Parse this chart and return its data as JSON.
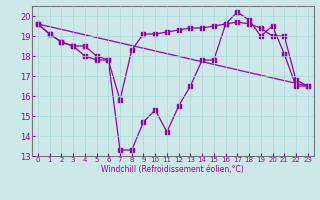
{
  "line1_x": [
    0,
    1,
    2,
    3,
    4,
    5,
    6,
    7,
    8,
    9,
    10,
    11,
    12,
    13,
    14,
    15,
    16,
    17,
    18,
    19,
    20,
    21,
    22,
    23
  ],
  "line1_y": [
    19.6,
    19.1,
    18.7,
    18.5,
    18.0,
    17.8,
    17.8,
    13.3,
    13.3,
    14.7,
    15.3,
    14.2,
    15.5,
    16.5,
    17.8,
    17.8,
    19.6,
    20.2,
    19.8,
    19.0,
    19.5,
    18.1,
    16.5,
    16.5
  ],
  "line2_x": [
    0,
    1,
    2,
    3,
    4,
    5,
    6,
    7,
    8,
    9,
    10,
    11,
    12,
    13,
    14,
    15,
    16,
    17,
    18,
    19,
    20,
    21,
    22,
    23
  ],
  "line2_y": [
    19.6,
    19.1,
    18.7,
    18.5,
    18.5,
    18.0,
    17.8,
    15.8,
    18.3,
    19.1,
    19.1,
    19.2,
    19.3,
    19.4,
    19.4,
    19.5,
    19.6,
    19.7,
    19.6,
    19.4,
    19.0,
    19.0,
    16.8,
    16.5
  ],
  "line3_x": [
    0,
    23
  ],
  "line3_y": [
    19.6,
    16.5
  ],
  "color": "#9900aa",
  "bg_color": "#cce8e8",
  "grid_color": "#aad8d8",
  "xlabel": "Windchill (Refroidissement éolien,°C)",
  "ylim": [
    13,
    20.5
  ],
  "xlim": [
    -0.5,
    23.5
  ],
  "yticks": [
    13,
    14,
    15,
    16,
    17,
    18,
    19,
    20
  ],
  "xticks": [
    0,
    1,
    2,
    3,
    4,
    5,
    6,
    7,
    8,
    9,
    10,
    11,
    12,
    13,
    14,
    15,
    16,
    17,
    18,
    19,
    20,
    21,
    22,
    23
  ],
  "tick_fontsize": 5,
  "ylabel_fontsize": 5.5,
  "xlabel_fontsize": 5.5,
  "marker_size": 2.5,
  "linewidth": 0.9
}
